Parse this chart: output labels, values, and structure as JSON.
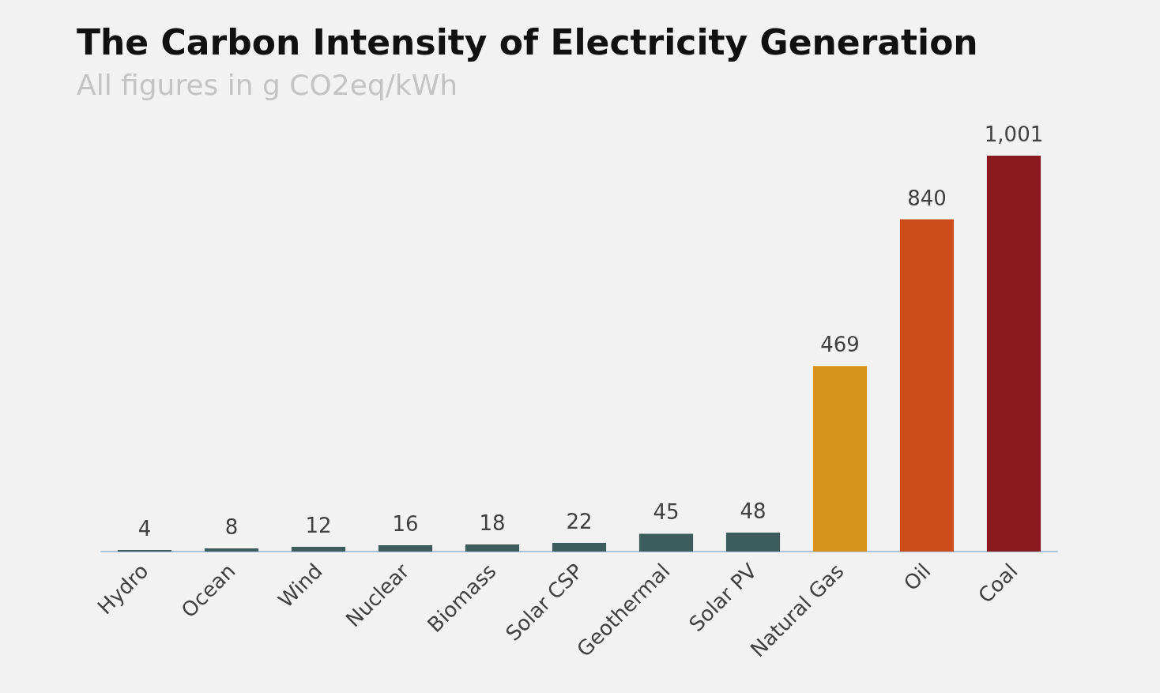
{
  "chart_data": {
    "type": "bar",
    "title": "The Carbon Intensity of Electricity Generation",
    "subtitle": "All figures in g CO2eq/kWh",
    "categories": [
      "Hydro",
      "Ocean",
      "Wind",
      "Nuclear",
      "Biomass",
      "Solar CSP",
      "Geothermal",
      "Solar PV",
      "Natural Gas",
      "Oil",
      "Coal"
    ],
    "values": [
      4,
      8,
      12,
      16,
      18,
      22,
      45,
      48,
      469,
      840,
      1001
    ],
    "value_labels": [
      "4",
      "8",
      "12",
      "16",
      "18",
      "22",
      "45",
      "48",
      "469",
      "840",
      "1,001"
    ],
    "colors": [
      "#3d5c5c",
      "#3d5c5c",
      "#3d5c5c",
      "#3d5c5c",
      "#3d5c5c",
      "#3d5c5c",
      "#3d5c5c",
      "#3d5c5c",
      "#d8941c",
      "#cc4c1c",
      "#8b1a1e"
    ]
  }
}
